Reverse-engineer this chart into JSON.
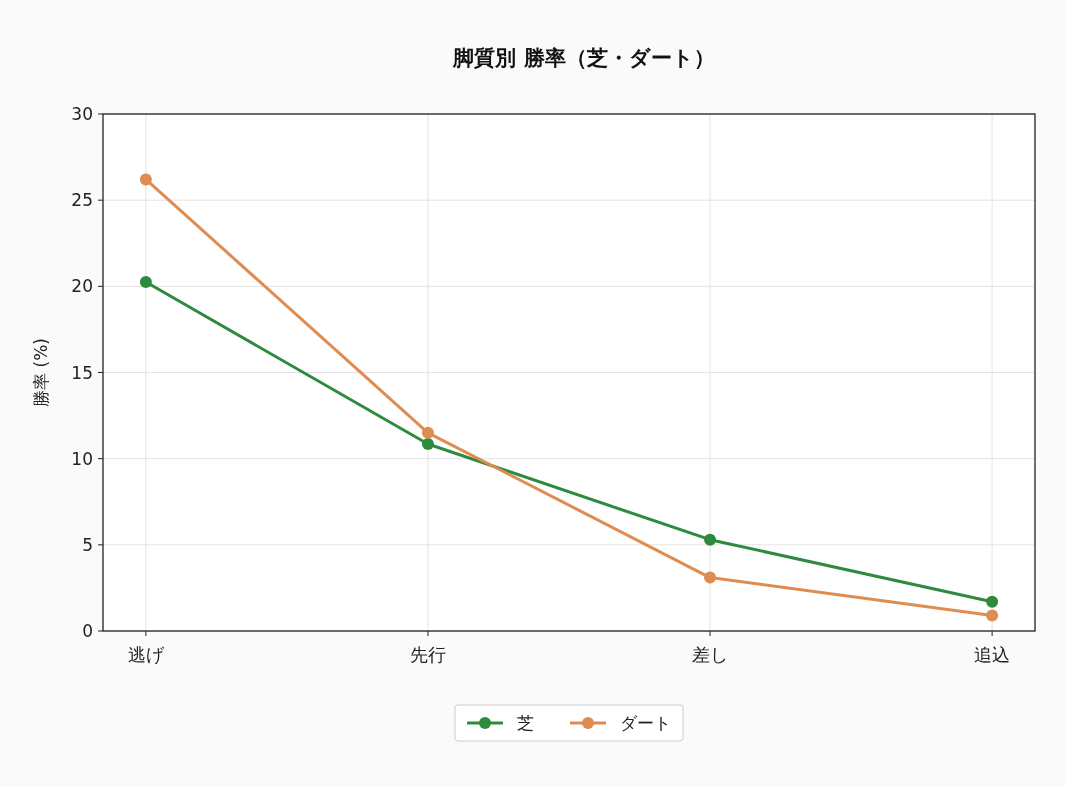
{
  "chart_data": {
    "type": "line",
    "title": "脚質別 勝率（芝・ダート）",
    "ylabel": "勝率 (%)",
    "categories": [
      "逃げ",
      "先行",
      "差し",
      "追込"
    ],
    "series": [
      {
        "name": "芝",
        "color": "#2e8b3e",
        "values": [
          20.25,
          10.85,
          5.3,
          1.7
        ]
      },
      {
        "name": "ダート",
        "color": "#e08b50",
        "values": [
          26.2,
          11.5,
          3.1,
          0.9
        ]
      }
    ],
    "ylim": [
      0,
      30
    ],
    "yticks": [
      0,
      5,
      10,
      15,
      20,
      25,
      30
    ],
    "grid": true,
    "legend": "bottom",
    "marker": "circle",
    "line_style": "solid"
  }
}
